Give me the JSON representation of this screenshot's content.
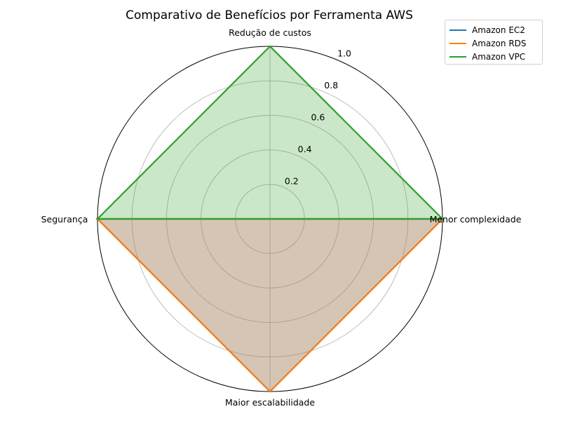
{
  "chart_data": {
    "type": "radar",
    "title": "Comparativo de Benefícios por Ferramenta AWS",
    "categories": [
      "Redução de custos",
      "Menor complexidade",
      "Maior escalabilidade",
      "Segurança"
    ],
    "rlim": [
      0,
      1.0
    ],
    "rticks": [
      "0.2",
      "0.4",
      "0.6",
      "0.8",
      "1.0"
    ],
    "grid": true,
    "legend_position": "top-right",
    "series": [
      {
        "name": "Amazon EC2",
        "color": "#1f77b4",
        "values": [
          0,
          1,
          1,
          1
        ]
      },
      {
        "name": "Amazon RDS",
        "color": "#ff7f0e",
        "values": [
          0,
          1,
          1,
          1
        ]
      },
      {
        "name": "Amazon VPC",
        "color": "#2ca02c",
        "values": [
          1,
          1,
          0,
          1
        ]
      }
    ]
  }
}
